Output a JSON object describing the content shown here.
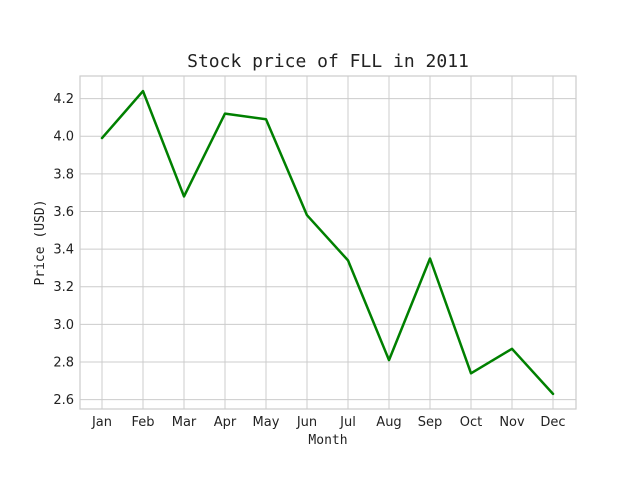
{
  "chart_data": {
    "type": "line",
    "title": "Stock price of FLL in 2011",
    "xlabel": "Month",
    "ylabel": "Price (USD)",
    "categories": [
      "Jan",
      "Feb",
      "Mar",
      "Apr",
      "May",
      "Jun",
      "Jul",
      "Aug",
      "Sep",
      "Oct",
      "Nov",
      "Dec"
    ],
    "series": [
      {
        "values": [
          3.99,
          4.24,
          3.68,
          4.12,
          4.09,
          3.58,
          3.34,
          2.81,
          3.35,
          2.74,
          2.87,
          2.63
        ],
        "color": "#008000"
      }
    ],
    "ylim": [
      2.55,
      4.32
    ],
    "yticks": [
      "2.6",
      "2.8",
      "3.0",
      "3.2",
      "3.4",
      "3.6",
      "3.8",
      "4.0",
      "4.2"
    ],
    "grid": true,
    "legend": "none"
  }
}
